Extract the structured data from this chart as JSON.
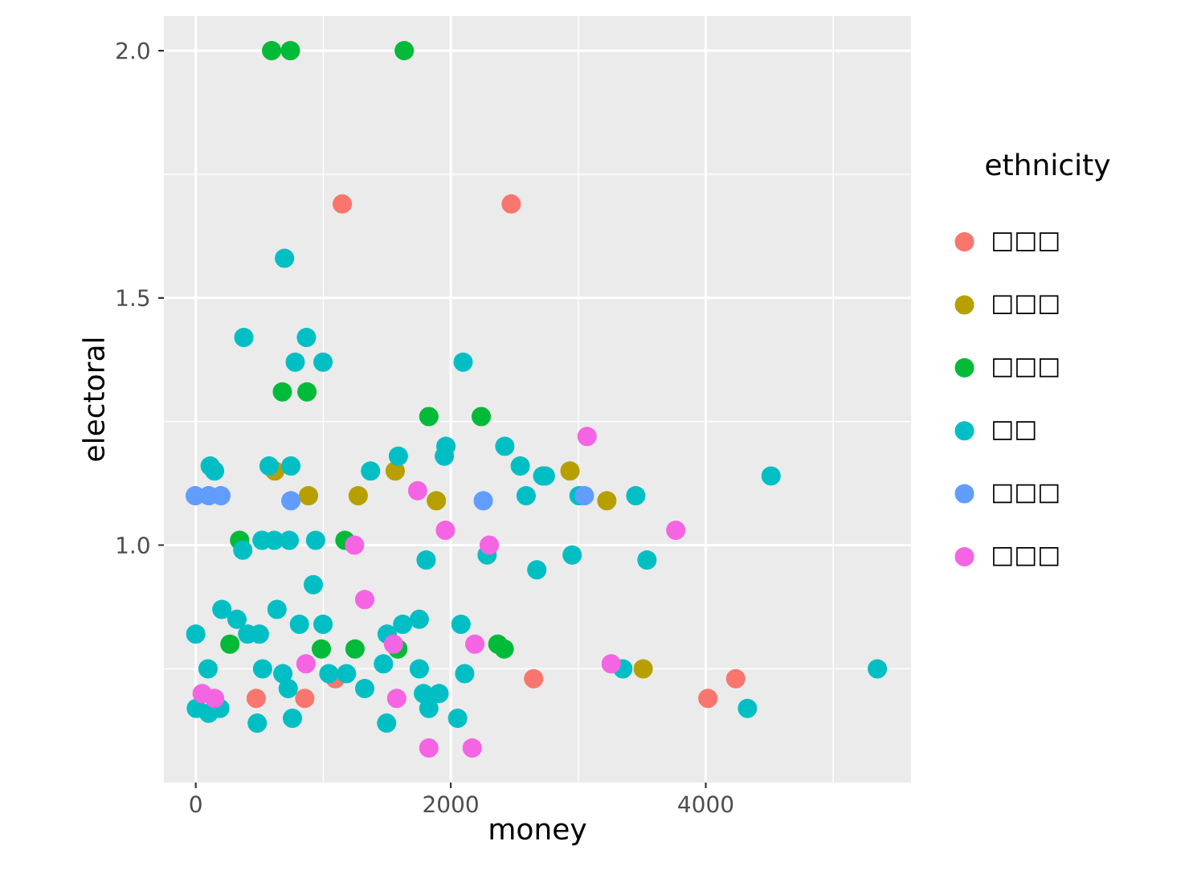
{
  "chart_data": {
    "type": "scatter",
    "xlabel": "money",
    "ylabel": "electoral",
    "legend_title": "ethnicity",
    "xlim": [
      -250,
      5610
    ],
    "ylim": [
      0.52,
      2.07
    ],
    "xticks": [
      0,
      2000,
      4000
    ],
    "yticks": [
      {
        "value": 1,
        "label": "1.0"
      },
      {
        "value": 1.5,
        "label": "1.5"
      },
      {
        "value": 2,
        "label": "2.0"
      }
    ],
    "grid": true,
    "legend": "right",
    "marker": "circle",
    "series": [
      {
        "name": "□□□",
        "color": "#f8766d",
        "x": [
          1149,
          2474,
          1094,
          2650,
          4235,
          4017,
          474,
          855
        ],
        "values": [
          1.69,
          1.69,
          0.73,
          0.73,
          0.73,
          0.69,
          0.69,
          0.69
        ]
      },
      {
        "name": "□□□",
        "color": "#b79f00",
        "x": [
          620,
          1564,
          1887,
          884,
          1274,
          2935,
          3224,
          3509
        ],
        "values": [
          1.15,
          1.15,
          1.09,
          1.1,
          1.1,
          1.15,
          1.09,
          0.75
        ]
      },
      {
        "name": "□□□",
        "color": "#00ba38",
        "x": [
          595,
          742,
          1635,
          679,
          872,
          1828,
          2239,
          344,
          1170,
          268,
          985,
          1249,
          1585,
          2369,
          2419
        ],
        "values": [
          2.0,
          2.0,
          2.0,
          1.31,
          1.31,
          1.26,
          1.26,
          1.01,
          1.01,
          0.8,
          0.79,
          0.79,
          0.79,
          0.8,
          0.79
        ]
      },
      {
        "name": "□□",
        "color": "#00bfc4",
        "x": [
          696,
          377,
          868,
          780,
          998,
          2097,
          1962,
          1950,
          2424,
          2545,
          2721,
          2591,
          113,
          147,
          575,
          746,
          1589,
          1371,
          2285,
          369,
          520,
          616,
          733,
          940,
          1807,
          2675,
          922,
          205,
          323,
          637,
          0,
          407,
          499,
          813,
          998,
          1501,
          1623,
          1753,
          2080,
          96,
          524,
          683,
          725,
          1044,
          1182,
          1325,
          1472,
          1753,
          2109,
          4,
          101,
          189,
          482,
          758,
          1786,
          1908,
          1828,
          1497,
          2054,
          2742,
          4512,
          3006,
          3451,
          2952,
          3539,
          3350,
          4327,
          5346
        ],
        "values": [
          1.58,
          1.42,
          1.42,
          1.37,
          1.37,
          1.37,
          1.2,
          1.18,
          1.2,
          1.16,
          1.14,
          1.1,
          1.16,
          1.15,
          1.16,
          1.16,
          1.18,
          1.15,
          0.98,
          0.99,
          1.01,
          1.01,
          1.01,
          1.01,
          0.97,
          0.95,
          0.92,
          0.87,
          0.85,
          0.87,
          0.82,
          0.82,
          0.82,
          0.84,
          0.84,
          0.82,
          0.84,
          0.85,
          0.84,
          0.75,
          0.75,
          0.74,
          0.71,
          0.74,
          0.74,
          0.71,
          0.76,
          0.75,
          0.74,
          0.67,
          0.66,
          0.67,
          0.64,
          0.65,
          0.7,
          0.7,
          0.67,
          0.64,
          0.65,
          1.14,
          1.14,
          1.1,
          1.1,
          0.98,
          0.97,
          0.75,
          0.67,
          0.75
        ]
      },
      {
        "name": "□□□",
        "color": "#619cff",
        "x": [
          -4,
          101,
          197,
          746,
          2255,
          3048
        ],
        "values": [
          1.1,
          1.1,
          1.1,
          1.09,
          1.09,
          1.1
        ]
      },
      {
        "name": "□□□",
        "color": "#f564e3",
        "x": [
          1740,
          1958,
          2302,
          1245,
          1325,
          864,
          1551,
          2189,
          50,
          147,
          1576,
          1828,
          2168,
          3069,
          3765,
          3258
        ],
        "values": [
          1.11,
          1.03,
          1.0,
          1.0,
          0.89,
          0.76,
          0.8,
          0.8,
          0.7,
          0.69,
          0.69,
          0.59,
          0.59,
          1.22,
          1.03,
          0.76
        ]
      }
    ]
  }
}
